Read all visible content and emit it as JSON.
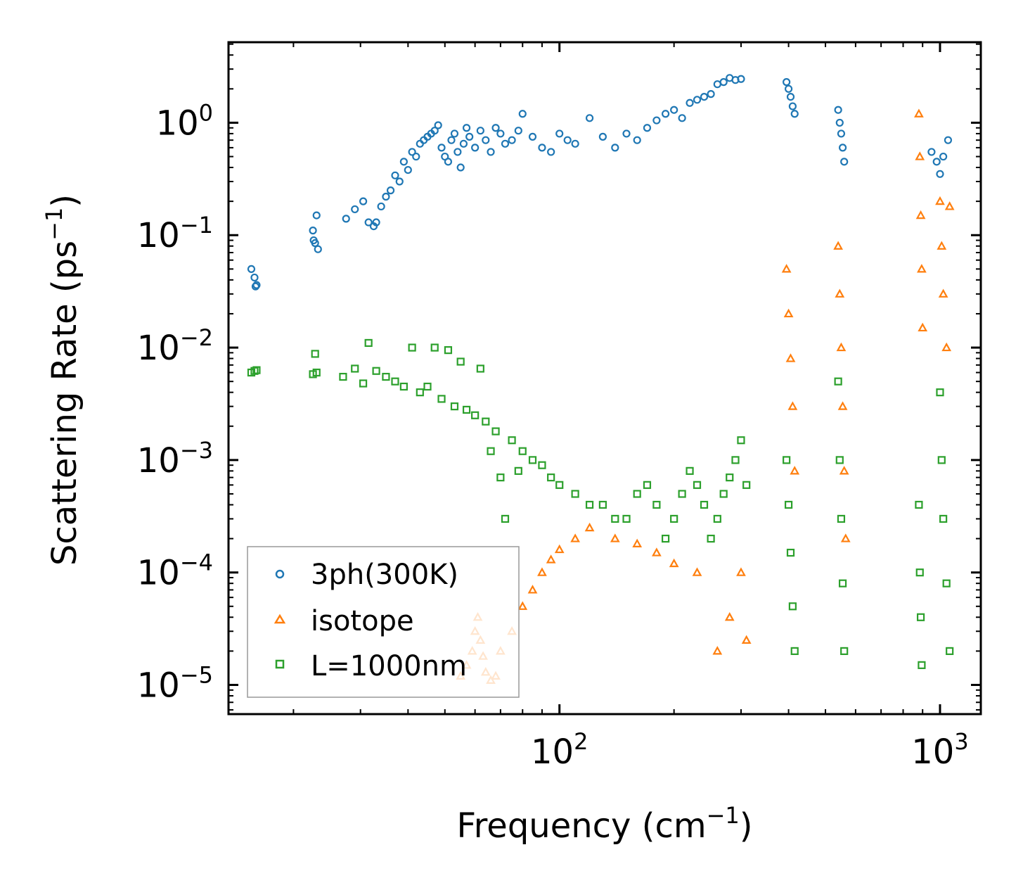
{
  "chart_data": {
    "type": "scatter",
    "title": "",
    "xlabel": "Frequency (cm",
    "xlabel_sup": "−1",
    "xlabel_tail": ")",
    "ylabel": "Scattering Rate (ps",
    "ylabel_sup": "−1",
    "ylabel_tail": ")",
    "xscale": "log",
    "yscale": "log",
    "xlim": [
      13.5,
      1280
    ],
    "ylim": [
      5.5e-06,
      5.2
    ],
    "x_ticks": [
      {
        "value": 100,
        "base": "10",
        "exp": "2"
      },
      {
        "value": 1000,
        "base": "10",
        "exp": "3"
      }
    ],
    "y_ticks": [
      {
        "value": 1,
        "base": "10",
        "exp": "0"
      },
      {
        "value": 0.1,
        "base": "10",
        "exp": "−1"
      },
      {
        "value": 0.01,
        "base": "10",
        "exp": "−2"
      },
      {
        "value": 0.001,
        "base": "10",
        "exp": "−3"
      },
      {
        "value": 0.0001,
        "base": "10",
        "exp": "−4"
      },
      {
        "value": 1e-05,
        "base": "10",
        "exp": "−5"
      }
    ],
    "legend_position": "lower-left",
    "series": [
      {
        "name": "3ph(300K)",
        "marker": "circle",
        "color": "#1f77b4",
        "points": [
          [
            15.5,
            0.05
          ],
          [
            15.8,
            0.042
          ],
          [
            15.9,
            0.035
          ],
          [
            16.0,
            0.036
          ],
          [
            22.5,
            0.11
          ],
          [
            22.6,
            0.09
          ],
          [
            22.8,
            0.085
          ],
          [
            23.0,
            0.15
          ],
          [
            23.2,
            0.075
          ],
          [
            27.5,
            0.14
          ],
          [
            29.0,
            0.17
          ],
          [
            30.5,
            0.2
          ],
          [
            31.5,
            0.13
          ],
          [
            32.5,
            0.12
          ],
          [
            33.0,
            0.13
          ],
          [
            34.0,
            0.18
          ],
          [
            35.0,
            0.22
          ],
          [
            36.0,
            0.25
          ],
          [
            37.0,
            0.34
          ],
          [
            38.0,
            0.3
          ],
          [
            39.0,
            0.45
          ],
          [
            40.0,
            0.38
          ],
          [
            41.0,
            0.55
          ],
          [
            42.0,
            0.5
          ],
          [
            43.0,
            0.65
          ],
          [
            44.0,
            0.7
          ],
          [
            45.0,
            0.75
          ],
          [
            46.0,
            0.8
          ],
          [
            47.0,
            0.85
          ],
          [
            48.0,
            0.95
          ],
          [
            49.0,
            0.6
          ],
          [
            50.0,
            0.5
          ],
          [
            51.0,
            0.45
          ],
          [
            52.0,
            0.7
          ],
          [
            53.0,
            0.8
          ],
          [
            54.0,
            0.55
          ],
          [
            55.0,
            0.4
          ],
          [
            56.0,
            0.65
          ],
          [
            57.0,
            0.9
          ],
          [
            58.0,
            0.75
          ],
          [
            60.0,
            0.6
          ],
          [
            62.0,
            0.85
          ],
          [
            64.0,
            0.7
          ],
          [
            66.0,
            0.55
          ],
          [
            68.0,
            0.9
          ],
          [
            70.0,
            0.8
          ],
          [
            72.0,
            0.65
          ],
          [
            75.0,
            0.7
          ],
          [
            78.0,
            0.85
          ],
          [
            80.0,
            1.2
          ],
          [
            85.0,
            0.75
          ],
          [
            90.0,
            0.6
          ],
          [
            95.0,
            0.55
          ],
          [
            100.0,
            0.8
          ],
          [
            105.0,
            0.7
          ],
          [
            110.0,
            0.65
          ],
          [
            120.0,
            1.1
          ],
          [
            130.0,
            0.75
          ],
          [
            140.0,
            0.6
          ],
          [
            150.0,
            0.8
          ],
          [
            160.0,
            0.7
          ],
          [
            170.0,
            0.9
          ],
          [
            180.0,
            1.05
          ],
          [
            190.0,
            1.2
          ],
          [
            200.0,
            1.3
          ],
          [
            210.0,
            1.1
          ],
          [
            220.0,
            1.5
          ],
          [
            230.0,
            1.6
          ],
          [
            240.0,
            1.7
          ],
          [
            250.0,
            1.8
          ],
          [
            260.0,
            2.2
          ],
          [
            270.0,
            2.3
          ],
          [
            280.0,
            2.5
          ],
          [
            290.0,
            2.4
          ],
          [
            300.0,
            2.45
          ],
          [
            395.0,
            2.3
          ],
          [
            400.0,
            2.0
          ],
          [
            405.0,
            1.7
          ],
          [
            410.0,
            1.4
          ],
          [
            415.0,
            1.2
          ],
          [
            540.0,
            1.3
          ],
          [
            545.0,
            1.0
          ],
          [
            550.0,
            0.8
          ],
          [
            555.0,
            0.6
          ],
          [
            560.0,
            0.45
          ],
          [
            950.0,
            0.55
          ],
          [
            980.0,
            0.45
          ],
          [
            1000.0,
            0.35
          ],
          [
            1020.0,
            0.5
          ],
          [
            1050.0,
            0.7
          ]
        ]
      },
      {
        "name": "isotope",
        "marker": "triangle",
        "color": "#ff7f0e",
        "points": [
          [
            55.0,
            1.2e-05
          ],
          [
            57.0,
            1.5e-05
          ],
          [
            59.0,
            2e-05
          ],
          [
            60.0,
            3e-05
          ],
          [
            61.0,
            4e-05
          ],
          [
            62.0,
            2.5e-05
          ],
          [
            63.0,
            1.8e-05
          ],
          [
            64.0,
            1.3e-05
          ],
          [
            66.0,
            1.1e-05
          ],
          [
            68.0,
            1.2e-05
          ],
          [
            70.0,
            2e-05
          ],
          [
            75.0,
            3e-05
          ],
          [
            80.0,
            5e-05
          ],
          [
            85.0,
            7e-05
          ],
          [
            90.0,
            0.0001
          ],
          [
            95.0,
            0.00013
          ],
          [
            100.0,
            0.00016
          ],
          [
            110.0,
            0.0002
          ],
          [
            120.0,
            0.00025
          ],
          [
            140.0,
            0.0002
          ],
          [
            160.0,
            0.00018
          ],
          [
            180.0,
            0.00015
          ],
          [
            200.0,
            0.00012
          ],
          [
            230.0,
            0.0001
          ],
          [
            260.0,
            2e-05
          ],
          [
            280.0,
            4e-05
          ],
          [
            300.0,
            0.0001
          ],
          [
            310.0,
            2.5e-05
          ],
          [
            395.0,
            0.05
          ],
          [
            400.0,
            0.02
          ],
          [
            405.0,
            0.008
          ],
          [
            410.0,
            0.003
          ],
          [
            415.0,
            0.0008
          ],
          [
            540.0,
            0.08
          ],
          [
            545.0,
            0.03
          ],
          [
            550.0,
            0.01
          ],
          [
            555.0,
            0.003
          ],
          [
            560.0,
            0.0008
          ],
          [
            565.0,
            0.0002
          ],
          [
            880.0,
            1.2
          ],
          [
            885.0,
            0.5
          ],
          [
            890.0,
            0.15
          ],
          [
            895.0,
            0.05
          ],
          [
            900.0,
            0.015
          ],
          [
            1000.0,
            0.2
          ],
          [
            1010.0,
            0.08
          ],
          [
            1020.0,
            0.03
          ],
          [
            1040.0,
            0.01
          ],
          [
            1060.0,
            0.18
          ]
        ]
      },
      {
        "name": "L=1000nm",
        "marker": "square",
        "color": "#2ca02c",
        "points": [
          [
            15.5,
            0.006
          ],
          [
            15.8,
            0.0062
          ],
          [
            16.0,
            0.0063
          ],
          [
            22.5,
            0.0058
          ],
          [
            22.8,
            0.0088
          ],
          [
            23.0,
            0.006
          ],
          [
            27.0,
            0.0055
          ],
          [
            29.0,
            0.0065
          ],
          [
            30.5,
            0.0048
          ],
          [
            31.5,
            0.011
          ],
          [
            33.0,
            0.0062
          ],
          [
            35.0,
            0.0055
          ],
          [
            37.0,
            0.005
          ],
          [
            39.0,
            0.0045
          ],
          [
            41.0,
            0.01
          ],
          [
            43.0,
            0.004
          ],
          [
            45.0,
            0.0045
          ],
          [
            47.0,
            0.01
          ],
          [
            49.0,
            0.0035
          ],
          [
            51.0,
            0.0095
          ],
          [
            53.0,
            0.003
          ],
          [
            55.0,
            0.0075
          ],
          [
            57.0,
            0.0028
          ],
          [
            60.0,
            0.0025
          ],
          [
            62.0,
            0.0065
          ],
          [
            64.0,
            0.0022
          ],
          [
            66.0,
            0.0012
          ],
          [
            68.0,
            0.0018
          ],
          [
            70.0,
            0.0007
          ],
          [
            72.0,
            0.0003
          ],
          [
            75.0,
            0.0015
          ],
          [
            78.0,
            0.0008
          ],
          [
            80.0,
            0.0012
          ],
          [
            85.0,
            0.001
          ],
          [
            90.0,
            0.0009
          ],
          [
            95.0,
            0.0007
          ],
          [
            100.0,
            0.0006
          ],
          [
            110.0,
            0.0005
          ],
          [
            120.0,
            0.0004
          ],
          [
            130.0,
            0.0004
          ],
          [
            140.0,
            0.0003
          ],
          [
            150.0,
            0.0003
          ],
          [
            160.0,
            0.0005
          ],
          [
            170.0,
            0.0006
          ],
          [
            180.0,
            0.0004
          ],
          [
            190.0,
            0.0002
          ],
          [
            200.0,
            0.0003
          ],
          [
            210.0,
            0.0005
          ],
          [
            220.0,
            0.0008
          ],
          [
            230.0,
            0.0006
          ],
          [
            240.0,
            0.0004
          ],
          [
            250.0,
            0.0002
          ],
          [
            260.0,
            0.0003
          ],
          [
            270.0,
            0.0005
          ],
          [
            280.0,
            0.0007
          ],
          [
            290.0,
            0.001
          ],
          [
            300.0,
            0.0015
          ],
          [
            310.0,
            0.0006
          ],
          [
            395.0,
            0.001
          ],
          [
            400.0,
            0.0004
          ],
          [
            405.0,
            0.00015
          ],
          [
            410.0,
            5e-05
          ],
          [
            415.0,
            2e-05
          ],
          [
            540.0,
            0.005
          ],
          [
            545.0,
            0.001
          ],
          [
            550.0,
            0.0003
          ],
          [
            555.0,
            8e-05
          ],
          [
            560.0,
            2e-05
          ],
          [
            880.0,
            0.0004
          ],
          [
            885.0,
            0.0001
          ],
          [
            890.0,
            4e-05
          ],
          [
            895.0,
            1.5e-05
          ],
          [
            1000.0,
            0.004
          ],
          [
            1010.0,
            0.001
          ],
          [
            1020.0,
            0.0003
          ],
          [
            1040.0,
            8e-05
          ],
          [
            1060.0,
            2e-05
          ]
        ]
      }
    ]
  }
}
